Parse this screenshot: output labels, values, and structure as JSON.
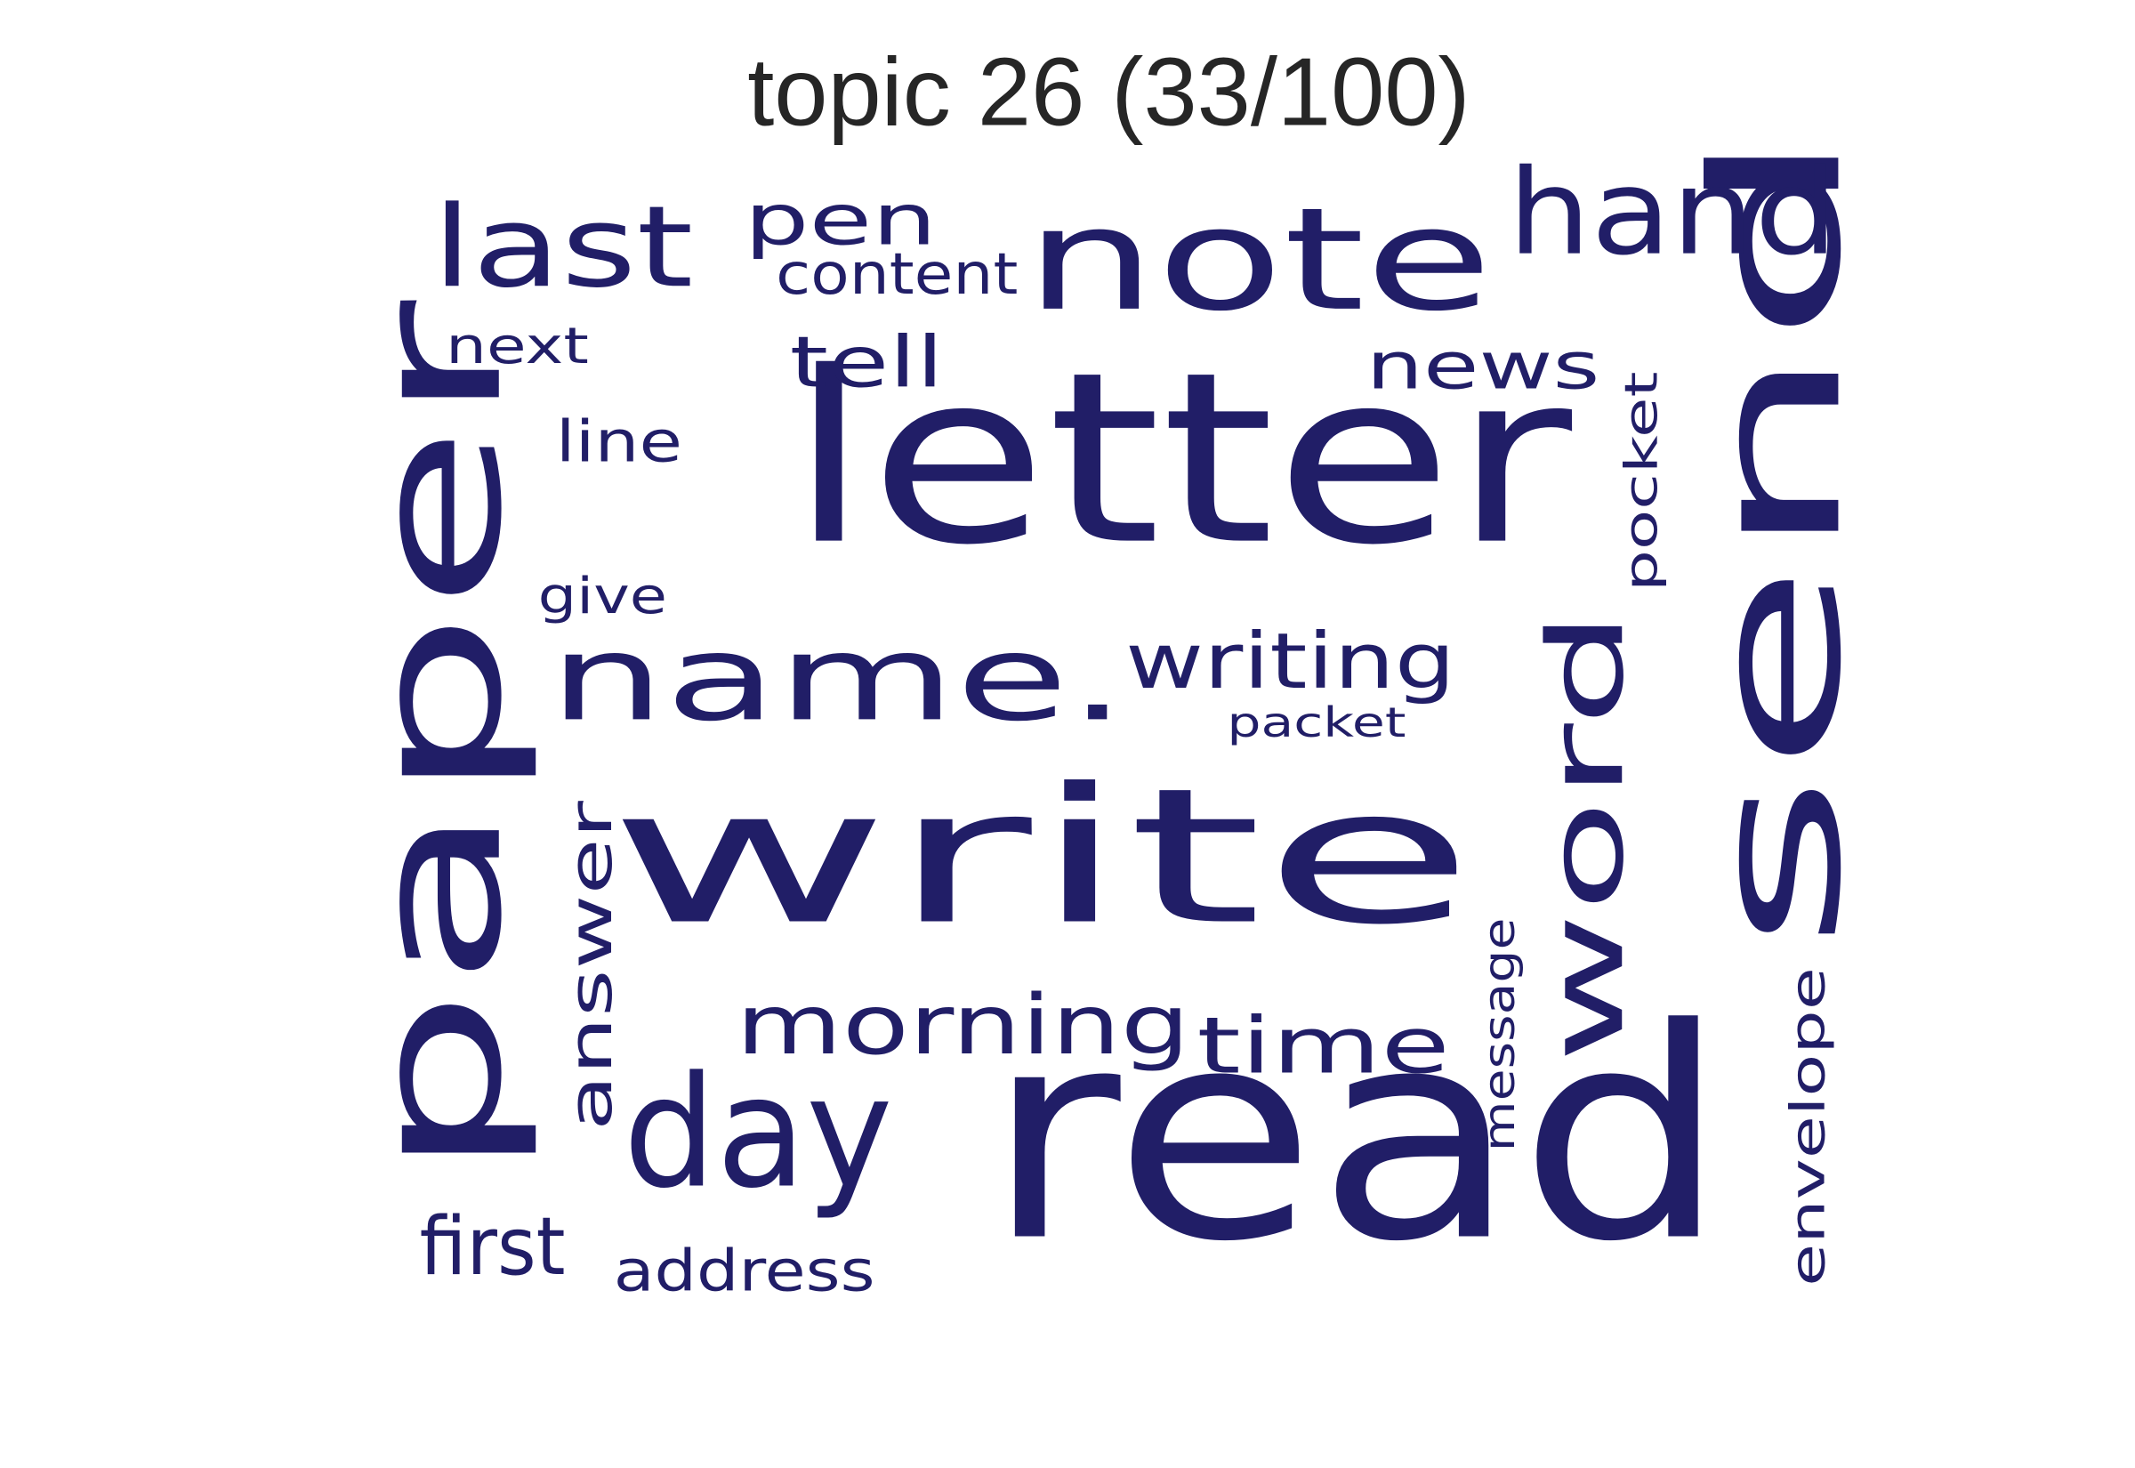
{
  "title": "topic 26 (33/100)",
  "word_color": "#211E67",
  "title_color": "#262626",
  "words": [
    "letter",
    "write",
    "read",
    "paper",
    "send",
    "note",
    "day",
    "word",
    "name.",
    "hand",
    "last",
    "morning",
    "writing",
    "time",
    "answer",
    "news",
    "tell",
    "pen",
    "first",
    "address",
    "content",
    "line",
    "next",
    "give",
    "pocket",
    "envelope",
    "message",
    "packet"
  ]
}
